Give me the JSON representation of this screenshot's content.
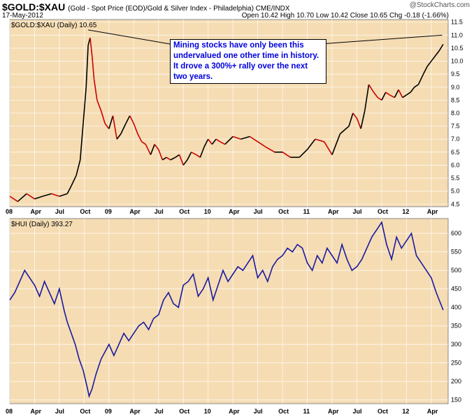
{
  "header": {
    "symbol": "$GOLD:$XAU",
    "description": "(Gold - Spot Price (EOD)/Gold & Silver Index - Philadelphia) CME/INDX",
    "date": "17-May-2012",
    "ohlc": "Open 10.42  High 10.70  Low 10.42  Close 10.65  Chg -0.18 (-1.66%)",
    "brand": "@StockCharts.com"
  },
  "annotation": "Mining stocks have only been this undervalued one other time in history. It drove a 300%+ rally over the next two years.",
  "colors": {
    "panel_bg": "#f5dcb3",
    "up": "#000000",
    "down": "#cc0000",
    "hui_line": "#1a1aa0"
  },
  "chart_data": [
    {
      "type": "line",
      "title": "$GOLD:$XAU (Daily) 10.65",
      "x_tick_labels": [
        "08",
        "Apr",
        "Jul",
        "Oct",
        "09",
        "Apr",
        "Jul",
        "Oct",
        "10",
        "Apr",
        "Jul",
        "Oct",
        "11",
        "Apr",
        "Jul",
        "Oct",
        "12",
        "Apr"
      ],
      "ylim": [
        4.4,
        11.6
      ],
      "y_ticks": [
        4.5,
        5.0,
        5.5,
        6.0,
        6.5,
        7.0,
        7.5,
        8.0,
        8.5,
        9.0,
        9.5,
        10.0,
        10.5,
        11.0,
        11.5
      ],
      "grid": true,
      "series": [
        {
          "x": [
            2008.0,
            2008.08,
            2008.17,
            2008.25,
            2008.33,
            2008.42,
            2008.5,
            2008.58,
            2008.62,
            2008.67,
            2008.71,
            2008.74,
            2008.77,
            2008.79,
            2008.81,
            2008.83,
            2008.85,
            2008.88,
            2008.92,
            2008.96,
            2009.0,
            2009.04,
            2009.08,
            2009.12,
            2009.17,
            2009.21,
            2009.25,
            2009.29,
            2009.33,
            2009.37,
            2009.42,
            2009.46,
            2009.5,
            2009.54,
            2009.58,
            2009.62,
            2009.67,
            2009.71,
            2009.75,
            2009.79,
            2009.83,
            2009.88,
            2009.92,
            2009.96,
            2010.0,
            2010.04,
            2010.08,
            2010.12,
            2010.17,
            2010.25,
            2010.33,
            2010.42,
            2010.5,
            2010.58,
            2010.67,
            2010.75,
            2010.83,
            2010.92,
            2011.0,
            2011.08,
            2011.17,
            2011.25,
            2011.33,
            2011.42,
            2011.46,
            2011.5,
            2011.54,
            2011.58,
            2011.62,
            2011.67,
            2011.71,
            2011.75,
            2011.79,
            2011.83,
            2011.88,
            2011.92,
            2011.96,
            2012.0,
            2012.04,
            2012.08,
            2012.12,
            2012.17,
            2012.21,
            2012.25,
            2012.29,
            2012.33,
            2012.37
          ],
          "y": [
            4.8,
            4.6,
            4.9,
            4.7,
            4.8,
            4.9,
            4.8,
            4.9,
            5.2,
            5.6,
            6.2,
            7.6,
            9.0,
            10.6,
            10.9,
            10.2,
            9.3,
            8.5,
            8.1,
            7.6,
            7.4,
            7.9,
            7.0,
            7.2,
            7.6,
            7.9,
            7.6,
            7.2,
            6.9,
            6.8,
            6.4,
            6.8,
            6.6,
            6.2,
            6.3,
            6.2,
            6.3,
            6.4,
            6.0,
            6.2,
            6.5,
            6.4,
            6.3,
            6.7,
            7.0,
            6.8,
            7.0,
            6.9,
            6.8,
            7.1,
            7.0,
            7.1,
            6.9,
            6.7,
            6.5,
            6.5,
            6.3,
            6.3,
            6.6,
            7.0,
            6.9,
            6.4,
            7.2,
            7.5,
            8.0,
            7.8,
            7.4,
            8.1,
            9.1,
            8.8,
            8.6,
            8.5,
            8.8,
            8.7,
            8.6,
            8.9,
            8.6,
            8.7,
            8.8,
            9.0,
            9.1,
            9.5,
            9.8,
            10.0,
            10.2,
            10.4,
            10.65
          ]
        }
      ]
    },
    {
      "type": "line",
      "title": "$HUI (Daily) 393.27",
      "x_tick_labels": [
        "08",
        "Apr",
        "Jul",
        "Oct",
        "09",
        "Apr",
        "Jul",
        "Oct",
        "10",
        "Apr",
        "Jul",
        "Oct",
        "11",
        "Apr",
        "Jul",
        "Oct",
        "12",
        "Apr"
      ],
      "ylim": [
        140,
        640
      ],
      "y_ticks": [
        150,
        200,
        250,
        300,
        350,
        400,
        450,
        500,
        550,
        600
      ],
      "grid": true,
      "series": [
        {
          "x": [
            2008.0,
            2008.05,
            2008.1,
            2008.15,
            2008.2,
            2008.25,
            2008.3,
            2008.35,
            2008.4,
            2008.45,
            2008.5,
            2008.55,
            2008.58,
            2008.62,
            2008.66,
            2008.7,
            2008.74,
            2008.78,
            2008.8,
            2008.83,
            2008.87,
            2008.92,
            2008.96,
            2009.0,
            2009.05,
            2009.1,
            2009.15,
            2009.2,
            2009.25,
            2009.3,
            2009.35,
            2009.4,
            2009.45,
            2009.5,
            2009.55,
            2009.6,
            2009.65,
            2009.7,
            2009.75,
            2009.8,
            2009.85,
            2009.9,
            2009.95,
            2010.0,
            2010.05,
            2010.1,
            2010.15,
            2010.2,
            2010.25,
            2010.3,
            2010.35,
            2010.4,
            2010.45,
            2010.5,
            2010.55,
            2010.6,
            2010.65,
            2010.7,
            2010.75,
            2010.8,
            2010.85,
            2010.9,
            2010.95,
            2011.0,
            2011.05,
            2011.1,
            2011.15,
            2011.2,
            2011.25,
            2011.3,
            2011.35,
            2011.4,
            2011.45,
            2011.5,
            2011.55,
            2011.6,
            2011.65,
            2011.7,
            2011.75,
            2011.8,
            2011.85,
            2011.9,
            2011.95,
            2012.0,
            2012.05,
            2012.1,
            2012.15,
            2012.2,
            2012.25,
            2012.3,
            2012.37
          ],
          "y": [
            420,
            440,
            470,
            500,
            480,
            460,
            430,
            470,
            440,
            410,
            450,
            390,
            360,
            330,
            300,
            260,
            230,
            185,
            160,
            180,
            220,
            260,
            280,
            300,
            270,
            300,
            330,
            310,
            330,
            350,
            360,
            340,
            370,
            380,
            420,
            440,
            410,
            400,
            460,
            470,
            490,
            430,
            450,
            480,
            420,
            460,
            500,
            470,
            490,
            510,
            500,
            520,
            540,
            480,
            500,
            470,
            510,
            530,
            540,
            560,
            550,
            570,
            560,
            520,
            500,
            540,
            520,
            560,
            540,
            520,
            570,
            530,
            500,
            510,
            530,
            560,
            590,
            610,
            630,
            570,
            530,
            590,
            560,
            580,
            600,
            540,
            520,
            500,
            480,
            440,
            393
          ]
        }
      ]
    }
  ]
}
